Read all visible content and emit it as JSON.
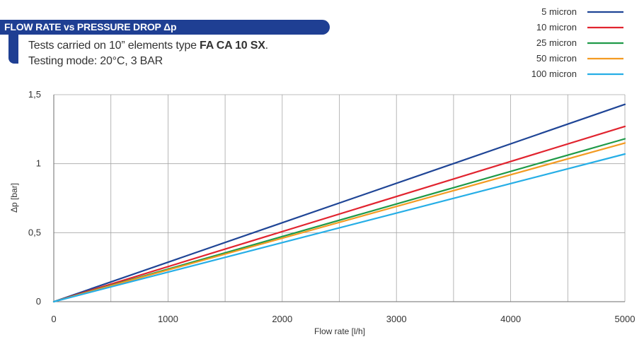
{
  "header": {
    "title": "FLOW RATE vs PRESSURE DROP Δp",
    "line1_prefix": "Tests carried on 10” elements type ",
    "line1_bold": "FA CA 10 SX",
    "line1_suffix": ".",
    "line2": "Testing mode: 20°C, 3 BAR"
  },
  "chart_data": {
    "type": "line",
    "title": "FLOW RATE vs PRESSURE DROP Δp",
    "xlabel": "Flow rate [l/h]",
    "ylabel": "Δp [bar]",
    "xlim": [
      0,
      5000
    ],
    "ylim": [
      0,
      1.5
    ],
    "x_ticks": [
      0,
      1000,
      2000,
      3000,
      4000,
      5000
    ],
    "x_tick_labels": [
      "0",
      "1000",
      "2000",
      "3000",
      "4000",
      "5000"
    ],
    "x_grid": [
      500,
      1000,
      1500,
      2000,
      2500,
      3000,
      3500,
      4000,
      4500,
      5000
    ],
    "y_ticks": [
      0,
      0.5,
      1,
      1.5
    ],
    "y_tick_labels": [
      "0",
      "0,5",
      "1",
      "1,5"
    ],
    "grid": true,
    "legend_position": "top-right",
    "x": [
      0,
      5000
    ],
    "series": [
      {
        "name": "5 micron",
        "color": "#1f4596",
        "values": [
          0,
          1.43
        ]
      },
      {
        "name": "10 micron",
        "color": "#e1242f",
        "values": [
          0,
          1.27
        ]
      },
      {
        "name": "25 micron",
        "color": "#1f9a48",
        "values": [
          0,
          1.18
        ]
      },
      {
        "name": "50 micron",
        "color": "#f39b22",
        "values": [
          0,
          1.15
        ]
      },
      {
        "name": "100 micron",
        "color": "#26aee6",
        "values": [
          0,
          1.07
        ]
      }
    ]
  }
}
